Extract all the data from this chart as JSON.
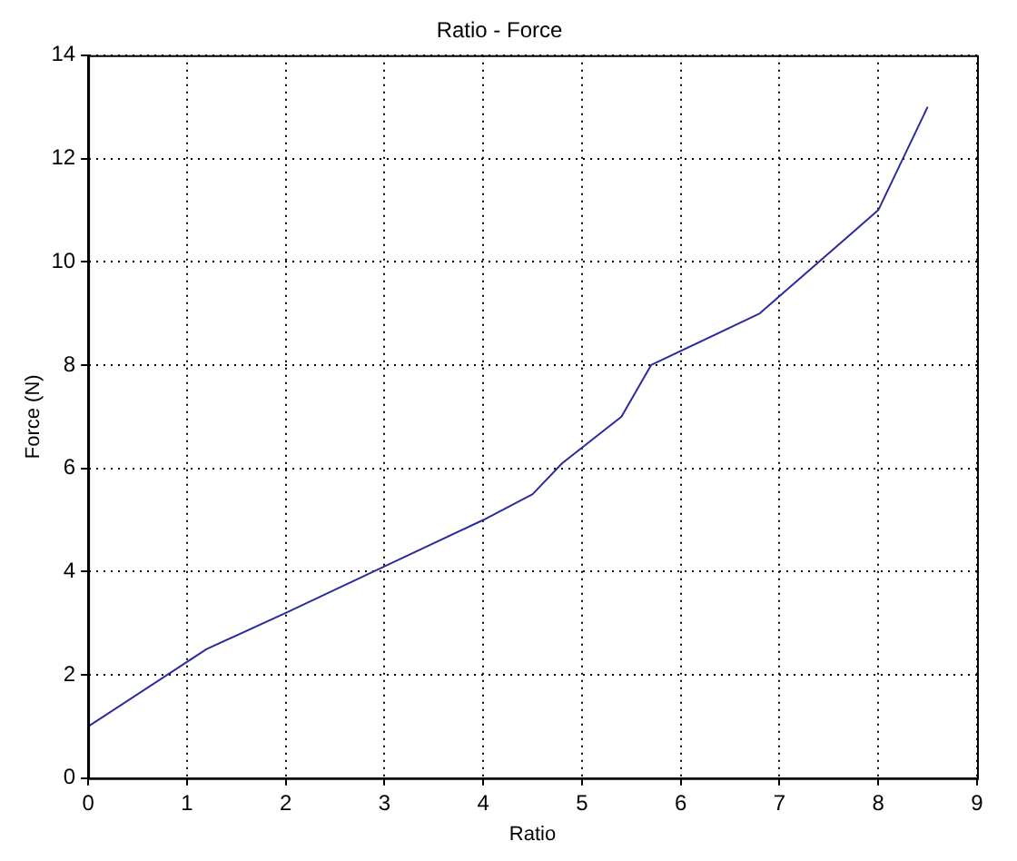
{
  "chart_data": {
    "type": "line",
    "title": "Ratio - Force",
    "xlabel": "Ratio",
    "ylabel": "Force (N)",
    "x": [
      0,
      1.2,
      2,
      3,
      4,
      4.5,
      4.8,
      5.4,
      5.7,
      6.8,
      8,
      8.5
    ],
    "series": [
      {
        "color": "#2b2b9e",
        "values": [
          1,
          2.5,
          3.2,
          4.1,
          5,
          5.5,
          6.1,
          7,
          8,
          9,
          11,
          13
        ]
      }
    ],
    "xlim": [
      0,
      9
    ],
    "xticks": [
      0,
      1,
      2,
      3,
      4,
      5,
      6,
      7,
      8,
      9
    ],
    "ylim": [
      0,
      14
    ],
    "yticks": [
      0,
      2,
      4,
      6,
      8,
      10,
      12,
      14
    ],
    "grid": true,
    "marker": "none",
    "line_style": "solid",
    "legend": false
  }
}
